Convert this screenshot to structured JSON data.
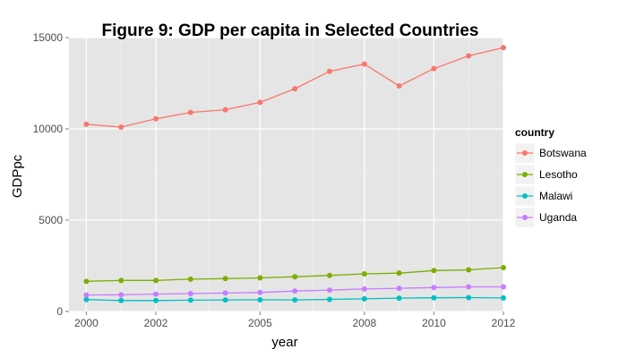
{
  "chart_data": {
    "type": "line",
    "title": "Figure 9: GDP per capita in Selected Countries",
    "xlabel": "year",
    "ylabel": "GDPpc",
    "xlim": [
      1999.5,
      2012.0
    ],
    "ylim": [
      0,
      15000
    ],
    "x_ticks": [
      "2000",
      "2002",
      "2005",
      "2008",
      "2010",
      "2012"
    ],
    "y_ticks": [
      "0",
      "5000",
      "10000",
      "15000"
    ],
    "x": [
      "2000",
      "2001",
      "2002",
      "2003",
      "2004",
      "2005",
      "2006",
      "2007",
      "2008",
      "2009",
      "2010",
      "2011",
      "2012"
    ],
    "grid": true,
    "legend_position": "right",
    "legend_title": "country",
    "series": [
      {
        "name": "Botswana",
        "color": "#F8766D",
        "values": [
          10250,
          10100,
          10550,
          10900,
          11050,
          11450,
          12200,
          13150,
          13550,
          12350,
          13300,
          14000,
          14450
        ]
      },
      {
        "name": "Lesotho",
        "color": "#7CAE00",
        "values": [
          1650,
          1700,
          1700,
          1770,
          1800,
          1840,
          1900,
          1970,
          2060,
          2100,
          2240,
          2280,
          2400
        ]
      },
      {
        "name": "Malawi",
        "color": "#00BFC4",
        "values": [
          650,
          600,
          600,
          620,
          630,
          640,
          630,
          660,
          690,
          730,
          750,
          760,
          740
        ]
      },
      {
        "name": "Uganda",
        "color": "#C77CFF",
        "values": [
          900,
          910,
          950,
          980,
          1010,
          1040,
          1120,
          1170,
          1230,
          1270,
          1310,
          1350,
          1350
        ]
      }
    ]
  }
}
